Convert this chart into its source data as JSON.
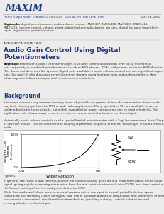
{
  "title_line1": "Audio Gain Control Using Digital",
  "title_line2": "Potentiometers",
  "app_note": "APPLICATION NOTE 1828",
  "logo_text": "MAXIM",
  "nav_text": "Home > App Notes > ANALOG CIRCUITS   DIGITAL POTENTIOMETERS",
  "date_text": "Dec 26, 2002",
  "keywords_label": "Keywords:",
  "keywords_body": " digital pot, digital potentiometer, audio volume control, MAX5407, MAX5408, MAX5409, MAX5411,\nMAX5411, volume control, volume adjust, digital volume adjustment, log pots, digital log pots, logarithmic\ntaper, logarithmic, potentiometers.",
  "abstract_label": "Abstract:",
  "abstract_body": " Digital potentiometers (pots) offer advantages in volume control applications over bulky mechanical\npots, especially in handheld portable devices such as MP3 players, PDAs, cell phones, or stereo AM/FM radios.\nThis document describes the types of digital pots available in audio volume control such as logarithmic taper\npots (log pots). It also discusses several common designs using log taper pots and audio amplifiers, their\nadvantages and disadvantages, and circuit recommendations.",
  "background_title": "Background",
  "background_text1": "It is now a common requirement in many forms of portable equipment to include some sort of stereo audio\nplayback circuitry, perhaps for MP3 or web radio applications. Many specialized ICs are available to use as\nbuilding blocks for these circuits, but widely available low power components can be used effectively. This\napplication note shows a way to achieve a stereo volume control without a mechanical pot.",
  "background_text2": "Historically audio volume controls used a special kind of potentiometer with a 'log' (or sometimes 'audio') taper\nor law (see below). This derives from the roughly logarithmic response of the ear to changes in sound pressure\nlevels.",
  "figure_label": "Figure 1.",
  "figure_caption1": "In general, the result is that the mid-point of the rotation usually gives around 20dB attenuation of the audio\nsignal, giving rapidly increasing attenuation from the mid-point counter-clock wise (CCW), and finer control over\nthe 'louder' settings from the mid-point clock wise (CW).",
  "figure_caption2": "While this works well, there are a number of reasons not to use a pot in a small portable device; space\nconstraints and reliability issues being just two. Use of up/down buttons in conjunction with some form of host\nprocessor is a convenient interface for modern devices, providing a cheap, useable solution instead\nof using a bulky mechanical pot.",
  "graph_ylabel": "Wiper to CCW\nTerminal\nResistance",
  "graph_xlabel": "Wiper Rotation",
  "y_top_label": "100%",
  "y_bottom_label": "0%",
  "x_labels": [
    "CCW",
    "MID",
    "CW"
  ],
  "cw_label": "CW",
  "ccw_label": "CCW",
  "bg_color": "#eeecea",
  "white": "#ffffff",
  "text_color": "#333333",
  "title_color": "#1a3a8a",
  "nav_color": "#2244aa",
  "logo_color": "#1a3a8a",
  "grid_color": "#cccccc",
  "curve_color": "#000000",
  "line_color": "#999999",
  "bold_text": "#111111"
}
